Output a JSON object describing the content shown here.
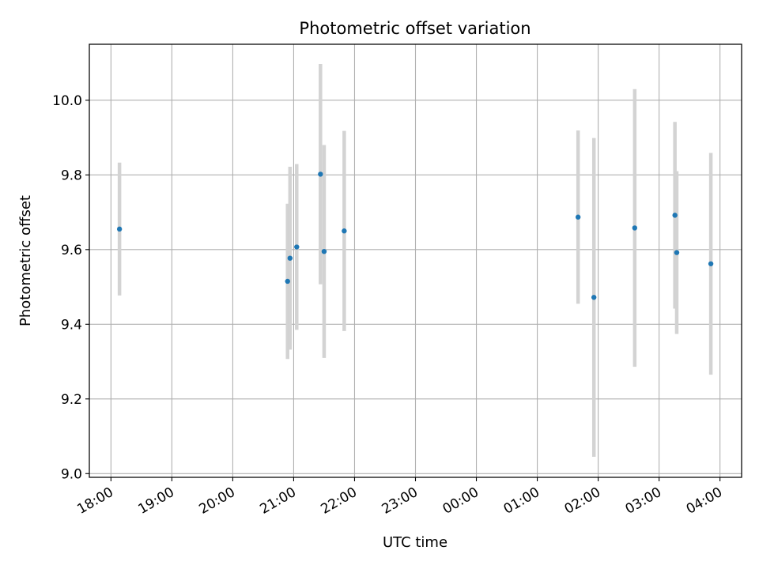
{
  "chart_data": {
    "type": "scatter",
    "title": "Photometric offset variation",
    "xlabel": "UTC time",
    "ylabel": "Photometric offset",
    "grid": true,
    "x_unit": "hours since 18:00 UTC",
    "xlim": [
      -0.355,
      10.355
    ],
    "ylim": [
      8.99,
      10.15
    ],
    "x_ticks": [
      {
        "value": 0,
        "label": "18:00"
      },
      {
        "value": 1,
        "label": "19:00"
      },
      {
        "value": 2,
        "label": "20:00"
      },
      {
        "value": 3,
        "label": "21:00"
      },
      {
        "value": 4,
        "label": "22:00"
      },
      {
        "value": 5,
        "label": "23:00"
      },
      {
        "value": 6,
        "label": "00:00"
      },
      {
        "value": 7,
        "label": "01:00"
      },
      {
        "value": 8,
        "label": "02:00"
      },
      {
        "value": 9,
        "label": "03:00"
      },
      {
        "value": 10,
        "label": "04:00"
      }
    ],
    "y_ticks": [
      {
        "value": 9.0,
        "label": "9.0"
      },
      {
        "value": 9.2,
        "label": "9.2"
      },
      {
        "value": 9.4,
        "label": "9.4"
      },
      {
        "value": 9.6,
        "label": "9.6"
      },
      {
        "value": 9.8,
        "label": "9.8"
      },
      {
        "value": 10.0,
        "label": "10.0"
      }
    ],
    "marker_color": "#1f77b4",
    "errorbar_color": "#d3d3d3",
    "points": [
      {
        "x": 0.14,
        "y": 9.655,
        "err": 0.178
      },
      {
        "x": 2.9,
        "y": 9.515,
        "err": 0.208
      },
      {
        "x": 2.94,
        "y": 9.577,
        "err": 0.245
      },
      {
        "x": 3.05,
        "y": 9.607,
        "err": 0.222
      },
      {
        "x": 3.44,
        "y": 9.802,
        "err": 0.295
      },
      {
        "x": 3.5,
        "y": 9.595,
        "err": 0.285
      },
      {
        "x": 3.83,
        "y": 9.65,
        "err": 0.268
      },
      {
        "x": 7.67,
        "y": 9.687,
        "err": 0.232
      },
      {
        "x": 7.93,
        "y": 9.472,
        "err": 0.427
      },
      {
        "x": 8.6,
        "y": 9.658,
        "err": 0.372
      },
      {
        "x": 9.26,
        "y": 9.692,
        "err": 0.25
      },
      {
        "x": 9.29,
        "y": 9.592,
        "err": 0.218
      },
      {
        "x": 9.85,
        "y": 9.562,
        "err": 0.297
      }
    ]
  }
}
